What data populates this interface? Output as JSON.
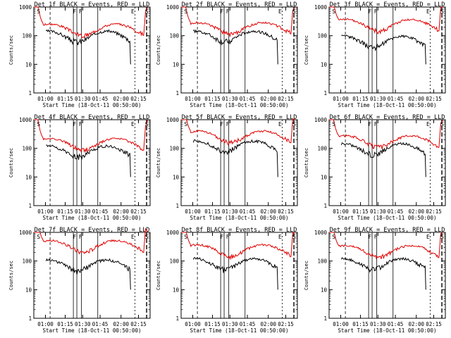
{
  "common": {
    "xlabel": "Start Time (18-Oct-11 00:50:00)",
    "ylabel": "Counts/sec",
    "y_ticks": [
      "1",
      "10",
      "100",
      "1000"
    ],
    "x_ticks_a": [
      "01:00",
      "01:15",
      "01:30",
      "01:45",
      "02:00",
      "02:15"
    ],
    "x_ticks_b": [
      "01:00",
      "01:15",
      "01:30",
      "01:45",
      "02:00",
      "02:15"
    ],
    "series": [
      {
        "name": "Events",
        "color": "#000000"
      },
      {
        "name": "LLD",
        "color": "#e00000"
      }
    ]
  },
  "chart_data": [
    {
      "type": "line",
      "title": "Det 1f BLACK = Events, RED = LLD",
      "yscale": "log",
      "ylim": [
        1,
        1000
      ],
      "x_ticks_labels": [
        "01:00",
        "01:15",
        "01:30",
        "01:45",
        "02:00",
        "02:15"
      ]
    },
    {
      "type": "line",
      "title": "Det 2f BLACK = Events, RED = LLD",
      "yscale": "log",
      "ylim": [
        1,
        1000
      ],
      "x_ticks_labels": [
        "01:00",
        "01:15",
        "01:30",
        "01:45",
        "02:00",
        "02:15"
      ]
    },
    {
      "type": "line",
      "title": "Det 3f BLACK = Events, RED = LLD",
      "yscale": "log",
      "ylim": [
        1,
        1000
      ],
      "x_ticks_labels": [
        "01:00",
        "01:15",
        "01:30",
        "01:45",
        "02:00",
        "02:15"
      ]
    },
    {
      "type": "line",
      "title": "Det 4f BLACK = Events, RED = LLD",
      "yscale": "log",
      "ylim": [
        1,
        1000
      ],
      "x_ticks_labels": [
        "01:00",
        "01:15",
        "01:30",
        "01:45",
        "02:00",
        "02:15"
      ]
    },
    {
      "type": "line",
      "title": "Det 5f BLACK = Events, RED = LLD",
      "yscale": "log",
      "ylim": [
        1,
        1000
      ],
      "x_ticks_labels": [
        "01:00",
        "01:15",
        "01:30",
        "01:45",
        "02:00",
        "02:15"
      ]
    },
    {
      "type": "line",
      "title": "Det 6f BLACK = Events, RED = LLD",
      "yscale": "log",
      "ylim": [
        1,
        1000
      ],
      "x_ticks_labels": [
        "01:00",
        "01:15",
        "01:30",
        "01:45",
        "02:00",
        "02:15"
      ]
    },
    {
      "type": "line",
      "title": "Det 7f BLACK = Events, RED = LLD",
      "yscale": "log",
      "ylim": [
        1,
        1000
      ],
      "x_ticks_labels": [
        "01:00",
        "01:15",
        "01:30",
        "01:45",
        "02:00",
        "02:15"
      ]
    },
    {
      "type": "line",
      "title": "Det 8f BLACK = Events, RED = LLD",
      "yscale": "log",
      "ylim": [
        1,
        1000
      ],
      "x_ticks_labels": [
        "01:00",
        "01:15",
        "01:30",
        "01:45",
        "02:00",
        "02:15"
      ]
    },
    {
      "type": "line",
      "title": "Det 9f BLACK = Events, RED = LLD",
      "yscale": "log",
      "ylim": [
        1,
        1000
      ],
      "x_ticks_labels": [
        "01:00",
        "01:15",
        "01:30",
        "01:45",
        "02:00",
        "02:15"
      ]
    }
  ],
  "panel_series": [
    {
      "events_level": 120,
      "lld_level": 220
    },
    {
      "events_level": 120,
      "lld_level": 250
    },
    {
      "events_level": 80,
      "lld_level": 320
    },
    {
      "events_level": 100,
      "lld_level": 190
    },
    {
      "events_level": 150,
      "lld_level": 350
    },
    {
      "events_level": 120,
      "lld_level": 240
    },
    {
      "events_level": 90,
      "lld_level": 450
    },
    {
      "events_level": 100,
      "lld_level": 320
    },
    {
      "events_level": 100,
      "lld_level": 300
    }
  ]
}
